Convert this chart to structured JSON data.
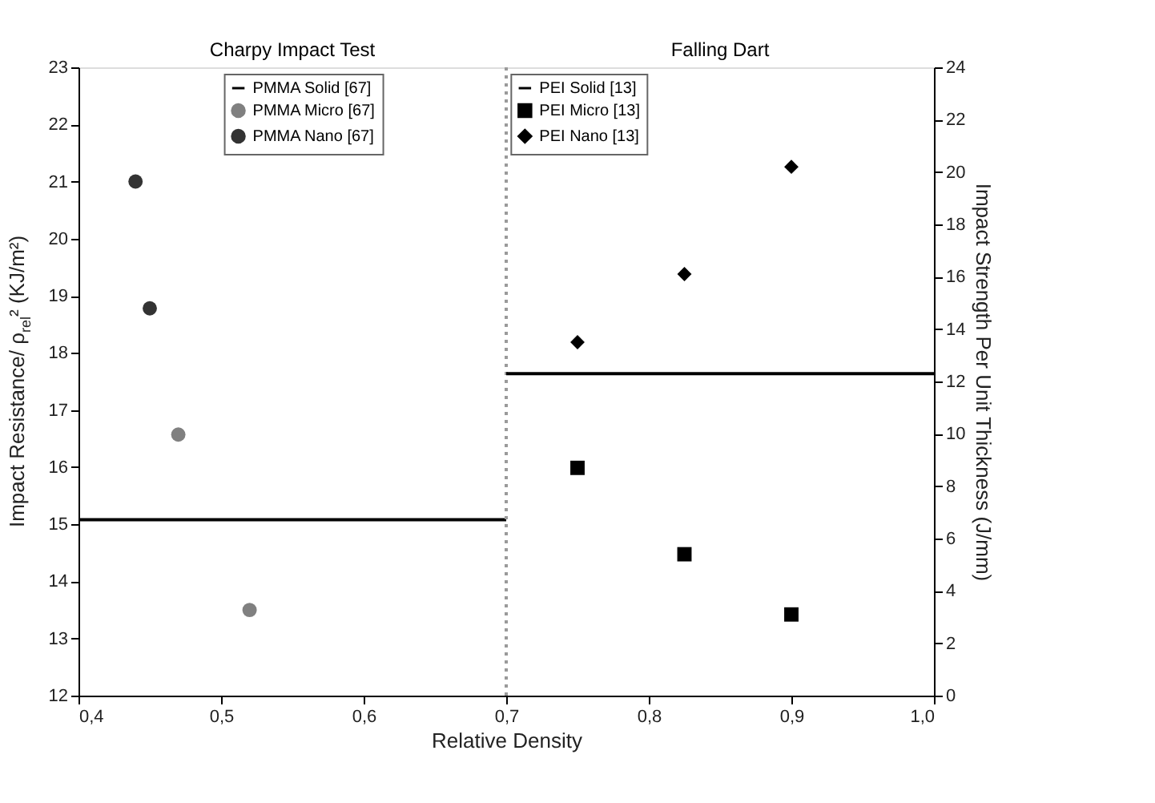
{
  "chart_data": {
    "type": "scatter",
    "xlabel": "Relative Density",
    "ylabel": "Impact Resistance/ ρ$_{rel}$² (KJ/m²)",
    "y2label": "Impact Strength Per Unit Thickness (J/mm)",
    "annotations": [
      "Charpy Impact Test",
      "Falling Dart"
    ],
    "xlim": [
      0.4,
      1.0
    ],
    "xticks": [
      {
        "value": 0.4,
        "label": "0,4"
      },
      {
        "value": 0.5,
        "label": "0,5"
      },
      {
        "value": 0.6,
        "label": "0,6"
      },
      {
        "value": 0.7,
        "label": "0,7"
      },
      {
        "value": 0.8,
        "label": "0,8"
      },
      {
        "value": 0.9,
        "label": "0,9"
      },
      {
        "value": 1.0,
        "label": "1,0"
      }
    ],
    "ylim": [
      12,
      23
    ],
    "yticks": [
      12,
      13,
      14,
      15,
      16,
      17,
      18,
      19,
      20,
      21,
      22,
      23
    ],
    "y2lim": [
      0,
      24
    ],
    "y2ticks": [
      0,
      2,
      4,
      6,
      8,
      10,
      12,
      14,
      16,
      18,
      20,
      22,
      24
    ],
    "grid": false,
    "legend": "top",
    "ref_lines": [
      {
        "axis": "x",
        "value": 0.7,
        "label": null,
        "color": "#9a9a9a",
        "line_style": "dotted"
      }
    ],
    "series": [
      {
        "name": "PMMA Solid [67]",
        "type": "line",
        "color": "#000000",
        "x": [
          0.4,
          0.7
        ],
        "values": [
          15.08,
          15.08
        ],
        "line_style": "solid"
      },
      {
        "name": "PMMA Micro [67]",
        "color": "#808080",
        "marker": "circle",
        "x": [
          0.47,
          0.52
        ],
        "values": [
          16.57,
          13.5
        ]
      },
      {
        "name": "PMMA Nano [67]",
        "color": "#333333",
        "marker": "circle",
        "x": [
          0.44,
          0.45
        ],
        "values": [
          21.0,
          18.78
        ]
      },
      {
        "name": "PEI Solid [13]",
        "type": "line",
        "axis": "y2",
        "color": "#000000",
        "x": [
          0.7,
          1.0
        ],
        "values": [
          12.3,
          12.3
        ],
        "line_style": "solid"
      },
      {
        "name": "PEI Micro [13]",
        "axis": "y2",
        "color": "#000000",
        "marker": "square",
        "x": [
          0.75,
          0.825,
          0.9
        ],
        "values": [
          8.7,
          5.4,
          3.1
        ]
      },
      {
        "name": "PEI Nano [13]",
        "axis": "y2",
        "color": "#000000",
        "marker": "diamond",
        "x": [
          0.75,
          0.825,
          0.9
        ],
        "values": [
          13.5,
          16.1,
          20.2
        ]
      }
    ]
  }
}
